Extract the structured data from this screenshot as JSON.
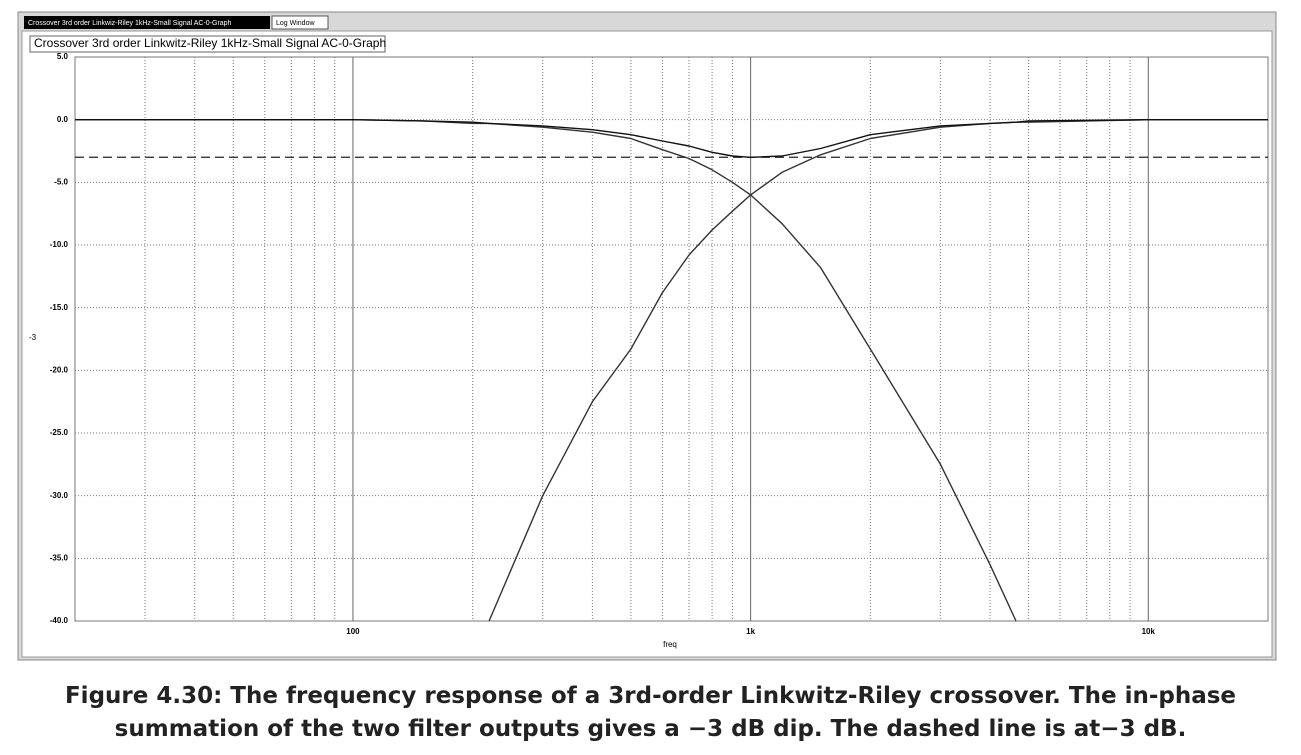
{
  "window": {
    "tabs": [
      "Crossover 3rd order Linkwiz-Riley 1kHz-Small Signal AC-0-Graph",
      "Log Window"
    ]
  },
  "chart_data": {
    "type": "line",
    "title": "Crossover 3rd order Linkwitz-Riley 1kHz-Small Signal AC-0-Graph",
    "x_label": "freq",
    "y_label": "-3",
    "log_x": true,
    "grid": true,
    "x": [
      20,
      50,
      100,
      150,
      200,
      220,
      300,
      400,
      500,
      600,
      700,
      800,
      900,
      1000,
      1200,
      1500,
      2000,
      3000,
      4000,
      4650,
      5000,
      10000,
      20000
    ],
    "series": [
      {
        "color": "#333333",
        "values": [
          null,
          null,
          null,
          null,
          null,
          -40,
          -30,
          -22.5,
          -18.3,
          -13.8,
          -10.8,
          -8.8,
          -7.3,
          -6,
          -4.2,
          -2.8,
          -1.5,
          -0.6,
          -0.3,
          -0.2,
          -0.2,
          0,
          0
        ]
      },
      {
        "color": "#333333",
        "values": [
          0,
          0,
          0,
          -0.1,
          -0.3,
          -0.3,
          -0.6,
          -1,
          -1.5,
          -2.4,
          -3.1,
          -4,
          -5,
          -6,
          -8.3,
          -11.8,
          -18.3,
          -27.5,
          -35.5,
          -40,
          null,
          null,
          null
        ]
      },
      {
        "color": "#111111",
        "values": [
          0,
          0,
          0,
          -0.1,
          -0.2,
          -0.3,
          -0.5,
          -0.8,
          -1.2,
          -1.7,
          -2.1,
          -2.6,
          -2.9,
          -3,
          -2.9,
          -2.3,
          -1.2,
          -0.5,
          -0.3,
          -0.2,
          -0.1,
          0,
          0
        ]
      }
    ],
    "hline": {
      "value": -3,
      "dashed": true,
      "color": "#222222"
    },
    "xlim": [
      20,
      20000
    ],
    "ylim": [
      -40,
      5
    ],
    "xticks": [
      100,
      {
        "value": 1000,
        "label": "1k"
      },
      {
        "value": 10000,
        "label": "10k"
      }
    ],
    "xminorticks": [
      30,
      40,
      50,
      60,
      70,
      80,
      90,
      200,
      300,
      400,
      500,
      600,
      700,
      800,
      900,
      2000,
      3000,
      4000,
      5000,
      6000,
      7000,
      8000,
      9000
    ],
    "yticks": [
      {
        "value": 5,
        "label": "5.0"
      },
      {
        "value": 0,
        "label": "0.0"
      },
      {
        "value": -5,
        "label": "-5.0"
      },
      {
        "value": -10,
        "label": "-10.0"
      },
      {
        "value": -15,
        "label": "-15.0"
      },
      {
        "value": -20,
        "label": "-20.0"
      },
      {
        "value": -25,
        "label": "-25.0"
      },
      {
        "value": -30,
        "label": "-30.0"
      },
      {
        "value": -35,
        "label": "-35.0"
      },
      {
        "value": -40,
        "label": "-40.0"
      }
    ]
  },
  "caption": [
    "Figure 4.30: The frequency response of a 3rd-order Linkwitz-Riley crossover. The in-phase",
    "summation of the two filter outputs gives a −3 dB dip. The dashed line is at−3 dB."
  ]
}
